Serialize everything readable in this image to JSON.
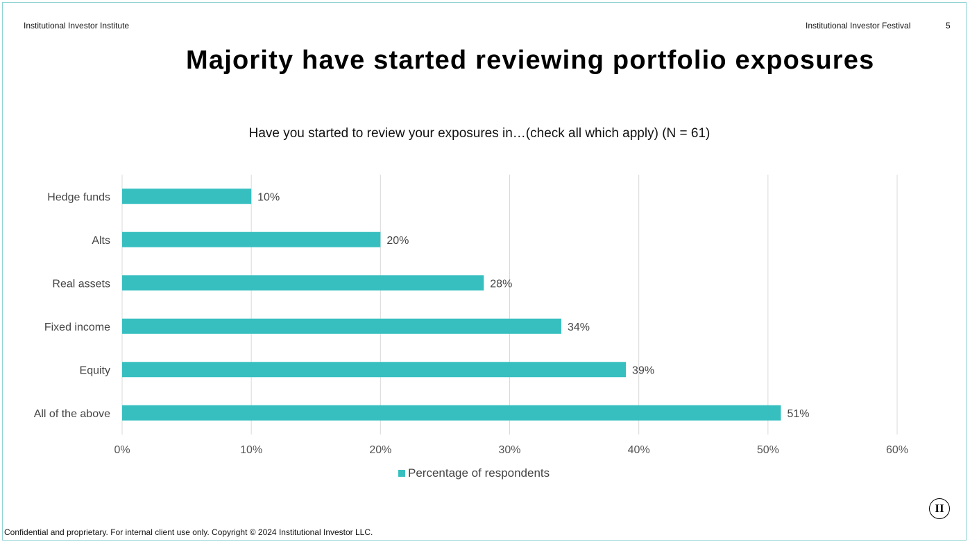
{
  "header": {
    "left": "Institutional Investor Institute",
    "right": "Institutional Investor Festival",
    "page_number": "5"
  },
  "title": "Majority have started reviewing portfolio exposures",
  "footer": "Confidential and proprietary. For internal client use only. Copyright © 2024 Institutional Investor LLC.",
  "logo_text": "II",
  "colors": {
    "bar": "#37bfc0",
    "grid": "#d9d9d9",
    "frame": "#8fd3d3"
  },
  "chart_data": {
    "type": "bar",
    "orientation": "horizontal",
    "title": "Have you started to review your exposures in…(check all which apply) (N = 61)",
    "categories": [
      "Hedge funds",
      "Alts",
      "Real assets",
      "Fixed income",
      "Equity",
      "All of the above"
    ],
    "series": [
      {
        "name": "Percentage of respondents",
        "values": [
          10,
          20,
          28,
          34,
          39,
          51
        ]
      }
    ],
    "data_labels": [
      "10%",
      "20%",
      "28%",
      "34%",
      "39%",
      "51%"
    ],
    "xlim": [
      0,
      60
    ],
    "x_ticks": [
      "0%",
      "10%",
      "20%",
      "30%",
      "40%",
      "50%",
      "60%"
    ],
    "grid": true,
    "legend_position": "bottom"
  }
}
